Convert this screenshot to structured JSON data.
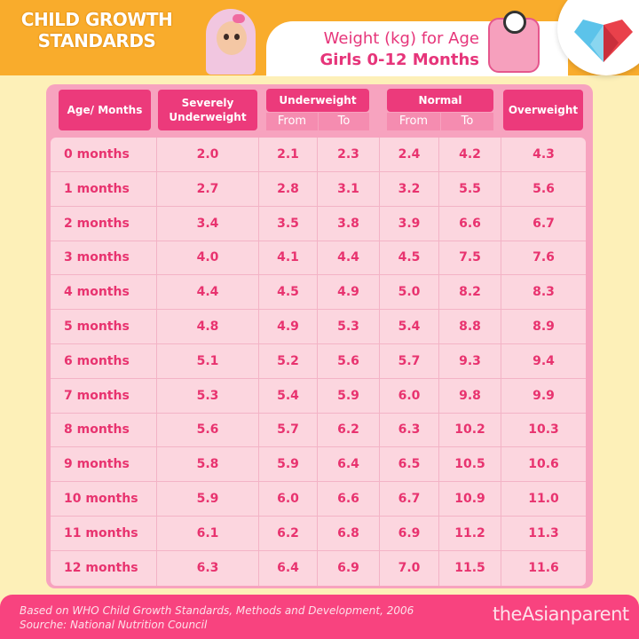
{
  "header": {
    "title_line1": "CHILD GROWTH",
    "title_line2": "STANDARDS",
    "subtitle_line1": "Weight (kg) for Age",
    "subtitle_line2": "Girls 0-12 Months"
  },
  "table": {
    "headers": {
      "age": "Age/ Months",
      "severe": "Severely Underweight",
      "under": "Underweight",
      "normal": "Normal",
      "over": "Overweight",
      "from": "From",
      "to": "To"
    },
    "rows": [
      [
        "0 months",
        "2.0",
        "2.1",
        "2.3",
        "2.4",
        "4.2",
        "4.3"
      ],
      [
        "1 months",
        "2.7",
        "2.8",
        "3.1",
        "3.2",
        "5.5",
        "5.6"
      ],
      [
        "2 months",
        "3.4",
        "3.5",
        "3.8",
        "3.9",
        "6.6",
        "6.7"
      ],
      [
        "3 months",
        "4.0",
        "4.1",
        "4.4",
        "4.5",
        "7.5",
        "7.6"
      ],
      [
        "4 months",
        "4.4",
        "4.5",
        "4.9",
        "5.0",
        "8.2",
        "8.3"
      ],
      [
        "5 months",
        "4.8",
        "4.9",
        "5.3",
        "5.4",
        "8.8",
        "8.9"
      ],
      [
        "6 months",
        "5.1",
        "5.2",
        "5.6",
        "5.7",
        "9.3",
        "9.4"
      ],
      [
        "7 months",
        "5.3",
        "5.4",
        "5.9",
        "6.0",
        "9.8",
        "9.9"
      ],
      [
        "8 months",
        "5.6",
        "5.7",
        "6.2",
        "6.3",
        "10.2",
        "10.3"
      ],
      [
        "9 months",
        "5.8",
        "5.9",
        "6.4",
        "6.5",
        "10.5",
        "10.6"
      ],
      [
        "10 months",
        "5.9",
        "6.0",
        "6.6",
        "6.7",
        "10.9",
        "11.0"
      ],
      [
        "11 months",
        "6.1",
        "6.2",
        "6.8",
        "6.9",
        "11.2",
        "11.3"
      ],
      [
        "12 months",
        "6.3",
        "6.4",
        "6.9",
        "7.0",
        "11.5",
        "11.6"
      ]
    ]
  },
  "footer": {
    "note_line1": "Based on WHO Child Growth Standards, Methods and Development, 2006",
    "note_line2": "Sourche: National Nutrition Council",
    "brand": "theAsianparent"
  },
  "colors": {
    "accent": "#ec3a7b",
    "header_bar": "#f9ac2c",
    "background": "#fdf0b8",
    "footer": "#f8437f"
  },
  "icons": [
    "girl-illustration",
    "scale-icon",
    "heart-logo-icon"
  ]
}
